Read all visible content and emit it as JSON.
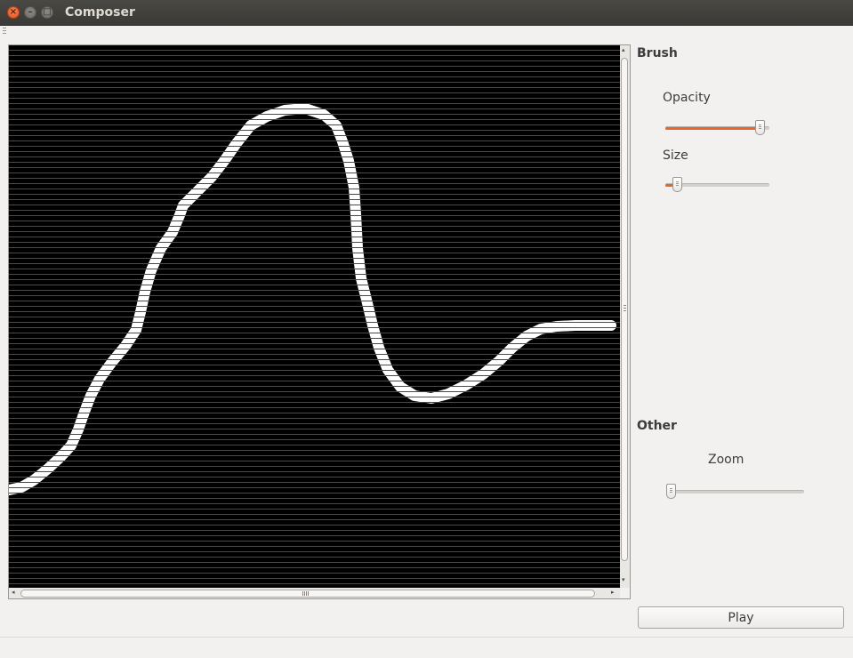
{
  "window": {
    "title": "Composer",
    "close_glyph": "×",
    "minimize_glyph": "–",
    "maximize_glyph": "□"
  },
  "brush": {
    "title": "Brush",
    "opacity_label": "Opacity",
    "opacity_value": 0.95,
    "size_label": "Size",
    "size_value": 0.08
  },
  "other": {
    "title": "Other",
    "zoom_label": "Zoom",
    "zoom_value": 0.0
  },
  "actions": {
    "play_label": "Play"
  },
  "colors": {
    "accent": "#e8652c",
    "canvas_background": "#000000",
    "stroke": "#ffffff"
  },
  "icons": {
    "scroll_up": "▴",
    "scroll_down": "▾",
    "scroll_left": "◂",
    "scroll_right": "▸"
  }
}
